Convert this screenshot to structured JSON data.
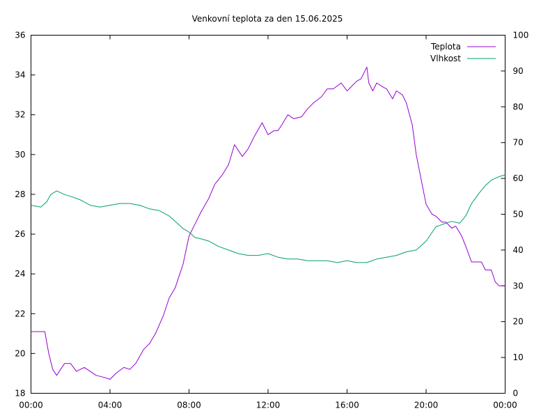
{
  "chart_data": {
    "type": "line",
    "title": "Venkovní teplota za den 15.06.2025",
    "xlabel": "",
    "ylabel": "",
    "y2label": "",
    "x_ticks": [
      "00:00",
      "04:00",
      "08:00",
      "12:00",
      "16:00",
      "20:00",
      "00:00"
    ],
    "x_range_hours": [
      0,
      24
    ],
    "y_ticks": [
      18,
      20,
      22,
      24,
      26,
      28,
      30,
      32,
      34,
      36
    ],
    "ylim": [
      18,
      36
    ],
    "y2_ticks": [
      0,
      10,
      20,
      30,
      40,
      50,
      60,
      70,
      80,
      90,
      100
    ],
    "y2lim": [
      0,
      100
    ],
    "grid": false,
    "legend_position": "top-right",
    "series": [
      {
        "name": "Teplota",
        "axis": "y",
        "color": "#9400D3",
        "x": [
          0,
          0.7,
          0.9,
          1.1,
          1.3,
          1.7,
          2.0,
          2.3,
          2.5,
          2.7,
          3.0,
          3.3,
          3.7,
          4.0,
          4.3,
          4.7,
          5.0,
          5.3,
          5.7,
          6.0,
          6.3,
          6.7,
          7.0,
          7.3,
          7.7,
          8.0,
          8.3,
          8.6,
          9.0,
          9.3,
          9.7,
          10.0,
          10.3,
          10.7,
          11.0,
          11.3,
          11.7,
          12.0,
          12.3,
          12.5,
          12.7,
          13.0,
          13.3,
          13.7,
          14.0,
          14.3,
          14.7,
          15.0,
          15.3,
          15.7,
          16.0,
          16.3,
          16.5,
          16.7,
          17.0,
          17.1,
          17.3,
          17.5,
          17.8,
          18.0,
          18.3,
          18.5,
          18.8,
          19.0,
          19.3,
          19.5,
          19.8,
          20.0,
          20.3,
          20.5,
          20.8,
          21.0,
          21.3,
          21.5,
          21.8,
          22.0,
          22.3,
          22.5,
          22.8,
          23.0,
          23.3,
          23.5,
          23.7,
          24.0
        ],
        "values": [
          21.1,
          21.1,
          20.0,
          19.2,
          18.9,
          19.5,
          19.5,
          19.1,
          19.2,
          19.3,
          19.1,
          18.9,
          18.8,
          18.7,
          19.0,
          19.3,
          19.2,
          19.5,
          20.2,
          20.5,
          21.0,
          21.9,
          22.8,
          23.3,
          24.5,
          25.9,
          26.5,
          27.1,
          27.8,
          28.5,
          29.0,
          29.5,
          30.5,
          29.9,
          30.3,
          30.9,
          31.6,
          31.0,
          31.2,
          31.2,
          31.5,
          32.0,
          31.8,
          31.9,
          32.3,
          32.6,
          32.9,
          33.3,
          33.3,
          33.6,
          33.2,
          33.5,
          33.7,
          33.8,
          34.4,
          33.6,
          33.2,
          33.6,
          33.4,
          33.3,
          32.8,
          33.2,
          33.0,
          32.6,
          31.5,
          30.0,
          28.5,
          27.5,
          27.0,
          26.9,
          26.6,
          26.6,
          26.3,
          26.4,
          25.9,
          25.4,
          24.6,
          24.6,
          24.6,
          24.2,
          24.2,
          23.6,
          23.4,
          23.4
        ]
      },
      {
        "name": "Vlhkost",
        "axis": "y2",
        "color": "#009E73",
        "x": [
          0,
          0.5,
          0.8,
          1.0,
          1.3,
          1.7,
          2.0,
          2.5,
          3.0,
          3.5,
          4.0,
          4.5,
          5.0,
          5.5,
          6.0,
          6.5,
          7.0,
          7.3,
          7.7,
          8.0,
          8.3,
          8.7,
          9.0,
          9.5,
          10.0,
          10.5,
          11.0,
          11.5,
          12.0,
          12.5,
          13.0,
          13.5,
          14.0,
          14.5,
          15.0,
          15.5,
          16.0,
          16.5,
          17.0,
          17.5,
          18.0,
          18.5,
          19.0,
          19.5,
          20.0,
          20.5,
          21.0,
          21.3,
          21.7,
          22.0,
          22.3,
          22.7,
          23.0,
          23.3,
          23.7,
          24.0
        ],
        "values": [
          52.5,
          52,
          53.5,
          55.5,
          56.5,
          55.5,
          55,
          54,
          52.5,
          52,
          52.5,
          53,
          53,
          52.5,
          51.5,
          51,
          49.5,
          48,
          46,
          45,
          43.5,
          43,
          42.5,
          41,
          40,
          39,
          38.5,
          38.5,
          39,
          38,
          37.5,
          37.5,
          37,
          37,
          37,
          36.5,
          37,
          36.5,
          36.5,
          37.5,
          38,
          38.5,
          39.5,
          40,
          42.5,
          46.5,
          47.5,
          48,
          47.5,
          49.5,
          53,
          56,
          58,
          59.5,
          60.5,
          61
        ]
      }
    ]
  }
}
